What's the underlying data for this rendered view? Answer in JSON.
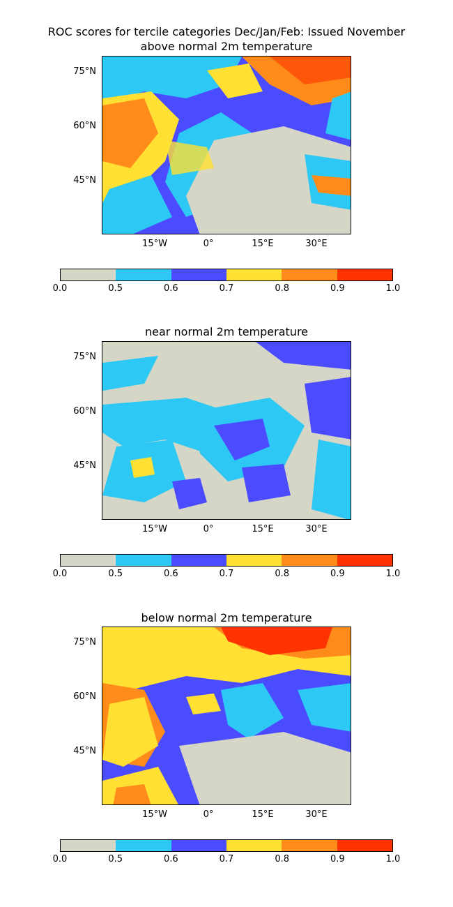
{
  "figure": {
    "title_line1": "ROC scores for tercile categories Dec/Jan/Feb: Issued November"
  },
  "panels": [
    {
      "title": "above normal 2m temperature"
    },
    {
      "title": "near normal 2m temperature"
    },
    {
      "title": "below normal 2m temperature"
    }
  ],
  "axes": {
    "lat_ticks": [
      "75°N",
      "60°N",
      "45°N"
    ],
    "lon_ticks": [
      "15°W",
      "0°",
      "15°E",
      "30°E"
    ]
  },
  "colorbar": {
    "levels": [
      "0.0",
      "0.5",
      "0.6",
      "0.7",
      "0.8",
      "0.9",
      "1.0"
    ],
    "colors": [
      "#d6d6c6",
      "#2ec8f5",
      "#4b4bff",
      "#ffe033",
      "#ff8c1a",
      "#ff3300"
    ]
  },
  "chart_data": {
    "type": "heatmap",
    "variable": "ROC score",
    "colorbar_bins": [
      [
        0.0,
        0.5
      ],
      [
        0.5,
        0.6
      ],
      [
        0.6,
        0.7
      ],
      [
        0.7,
        0.8
      ],
      [
        0.8,
        0.9
      ],
      [
        0.9,
        1.0
      ]
    ]
  }
}
